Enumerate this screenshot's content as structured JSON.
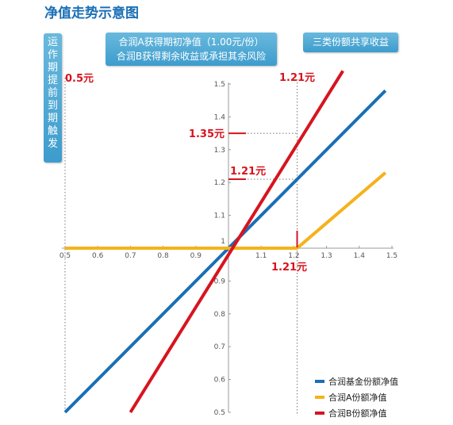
{
  "title": "净值走势示意图",
  "callouts": {
    "left_vertical": [
      "运",
      "作",
      "期",
      "提",
      "前",
      "到",
      "期",
      "触",
      "发"
    ],
    "center_line1": "合润A获得期初净值（1.00元/份）",
    "center_line2": "合润B获得剩余收益或承担其余风险",
    "right": "三类份额共享收益"
  },
  "annotations": {
    "left_trigger": "0.5元",
    "top_trigger": "1.21元",
    "b_value": "1.35元",
    "parent_value": "1.21元",
    "x_trigger": "1.21元"
  },
  "colors": {
    "parent": "#1a6fb5",
    "class_a": "#f5b21b",
    "class_b": "#d7141e",
    "annotation": "#d7141e",
    "callout": "#4aa5d3"
  },
  "chart_data": {
    "type": "line",
    "title": "净值走势示意图",
    "xlabel": "",
    "ylabel": "",
    "xlim": [
      0.5,
      1.5
    ],
    "ylim": [
      0.5,
      1.5
    ],
    "x_ticks": [
      0.5,
      0.6,
      0.7,
      0.8,
      0.9,
      1,
      1.1,
      1.2,
      1.3,
      1.4,
      1.5
    ],
    "x_tick_labels": [
      "0.5",
      "0.6",
      "0.7",
      "0.8",
      "0.9",
      "1",
      "1.1",
      "1.2",
      "1.3",
      "1.4",
      "1.5"
    ],
    "y_ticks": [
      0.5,
      0.6,
      0.7,
      0.8,
      0.9,
      1,
      1.1,
      1.2,
      1.3,
      1.4,
      1.5
    ],
    "y_tick_labels": [
      "0.5",
      "0.6",
      "0.7",
      "0.8",
      "0.9",
      "1",
      "1.1",
      "1.2",
      "1.3",
      "1.4",
      "1.5"
    ],
    "series": [
      {
        "name": "合润基金份额净值",
        "color": "#1a6fb5",
        "points": [
          [
            0.5,
            0.5
          ],
          [
            1.48,
            1.48
          ]
        ]
      },
      {
        "name": "合润A份额净值",
        "color": "#f5b21b",
        "points": [
          [
            0.5,
            1
          ],
          [
            1.21,
            1
          ],
          [
            1.48,
            1.23
          ]
        ]
      },
      {
        "name": "合润B份额净值",
        "color": "#d7141e",
        "points": [
          [
            0.7,
            0.5
          ],
          [
            1.35,
            1.54
          ]
        ]
      }
    ],
    "reference_lines": [
      {
        "axis": "x",
        "value": 0.5,
        "style": "dotted"
      },
      {
        "axis": "x",
        "value": 1.21,
        "style": "dotted"
      },
      {
        "axis": "y",
        "value": 1.35,
        "style": "dotted"
      },
      {
        "axis": "y",
        "value": 1.21,
        "style": "dotted"
      }
    ],
    "legend_position": "bottom-right",
    "grid": false
  }
}
